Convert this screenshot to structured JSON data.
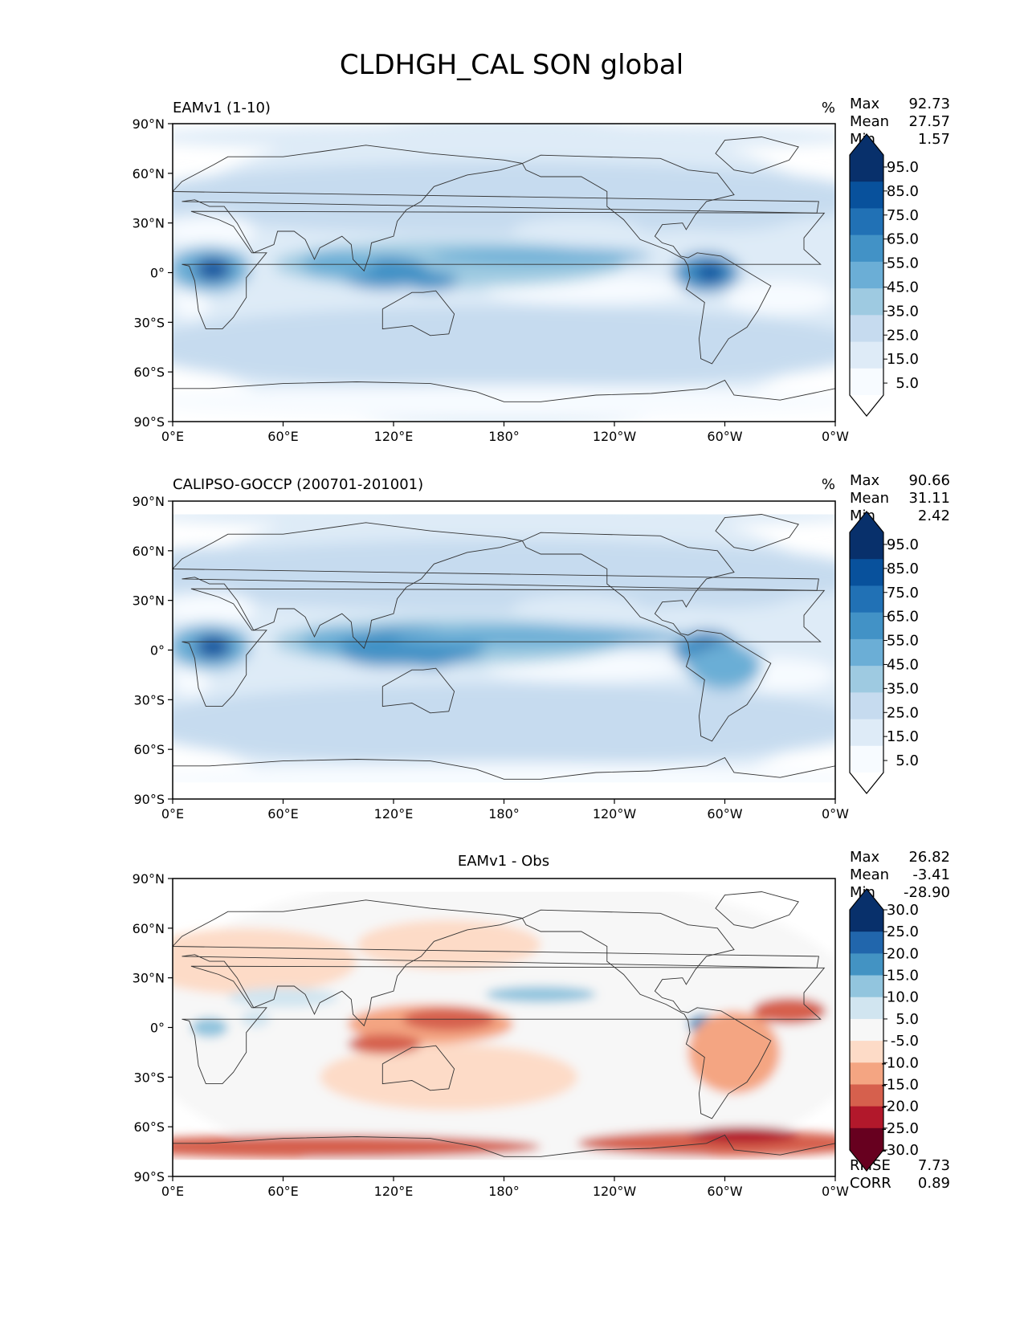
{
  "figure": {
    "title": "CLDHGH_CAL SON global"
  },
  "axes": {
    "x_ticks": [
      "0°E",
      "60°E",
      "120°E",
      "180°",
      "120°W",
      "60°W",
      "0°W"
    ],
    "y_ticks": [
      "90°N",
      "60°N",
      "30°N",
      "0°",
      "30°S",
      "60°S",
      "90°S"
    ]
  },
  "chart_data": [
    {
      "type": "heatmap",
      "panel": "test",
      "title": "EAMv1 (1-10)",
      "units": "%",
      "stats": {
        "max_label": "Max",
        "max": "92.73",
        "mean_label": "Mean",
        "mean": "27.57",
        "min_label": "Min",
        "min": "1.57"
      },
      "colorbar_ticks": [
        "95.0",
        "85.0",
        "75.0",
        "65.0",
        "55.0",
        "45.0",
        "35.0",
        "25.0",
        "15.0",
        "5.0"
      ],
      "colorbar_colors": [
        "#08306b",
        "#08519c",
        "#2171b5",
        "#4292c6",
        "#6baed6",
        "#9ecae1",
        "#c6dbef",
        "#deebf7",
        "#f7fbff"
      ],
      "xlim": [
        0,
        360
      ],
      "ylim": [
        -90,
        90
      ]
    },
    {
      "type": "heatmap",
      "panel": "reference",
      "title": "CALIPSO-GOCCP (200701-201001)",
      "units": "%",
      "stats": {
        "max_label": "Max",
        "max": "90.66",
        "mean_label": "Mean",
        "mean": "31.11",
        "min_label": "Min",
        "min": "2.42"
      },
      "colorbar_ticks": [
        "95.0",
        "85.0",
        "75.0",
        "65.0",
        "55.0",
        "45.0",
        "35.0",
        "25.0",
        "15.0",
        "5.0"
      ],
      "colorbar_colors": [
        "#08306b",
        "#08519c",
        "#2171b5",
        "#4292c6",
        "#6baed6",
        "#9ecae1",
        "#c6dbef",
        "#deebf7",
        "#f7fbff"
      ],
      "xlim": [
        0,
        360
      ],
      "ylim": [
        -90,
        90
      ]
    },
    {
      "type": "heatmap",
      "panel": "difference",
      "title": "EAMv1 - Obs",
      "units": "",
      "stats": {
        "max_label": "Max",
        "max": "26.82",
        "mean_label": "Mean",
        "mean": "-3.41",
        "min_label": "Min",
        "min": "-28.90"
      },
      "metrics": {
        "rmse_label": "RMSE",
        "rmse": "7.73",
        "corr_label": "CORR",
        "corr": "0.89"
      },
      "colorbar_ticks": [
        "30.0",
        "25.0",
        "20.0",
        "15.0",
        "10.0",
        "5.0",
        "-5.0",
        "-10.0",
        "-15.0",
        "-20.0",
        "-25.0",
        "-30.0"
      ],
      "colorbar_colors": [
        "#08306b",
        "#2166ac",
        "#4393c3",
        "#92c5de",
        "#d1e5f0",
        "#f7f7f7",
        "#fddbc7",
        "#f4a582",
        "#d6604d",
        "#b2182b",
        "#67001f"
      ],
      "xlim": [
        0,
        360
      ],
      "ylim": [
        -90,
        90
      ]
    }
  ]
}
